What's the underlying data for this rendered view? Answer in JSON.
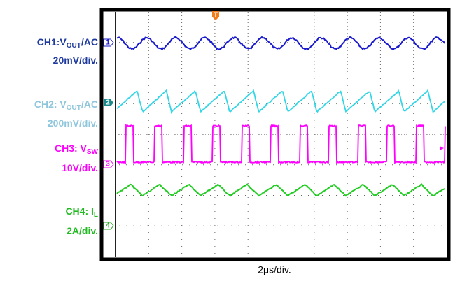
{
  "channels": [
    {
      "name_parts": [
        "CH1:V",
        "OUT",
        "/AC"
      ],
      "scale": "20mV/div.",
      "marker": "1"
    },
    {
      "name_parts": [
        "CH2: V",
        "OUT",
        "/AC"
      ],
      "scale": "200mV/div.",
      "marker": "2"
    },
    {
      "name_parts": [
        "CH3: V",
        "SW"
      ],
      "scale": "10V/div.",
      "marker": "3"
    },
    {
      "name_parts": [
        "CH4: I",
        "L"
      ],
      "scale": "2A/div.",
      "marker": "4"
    }
  ],
  "timebase": "2μs/div.",
  "trigger_marker": "T"
}
